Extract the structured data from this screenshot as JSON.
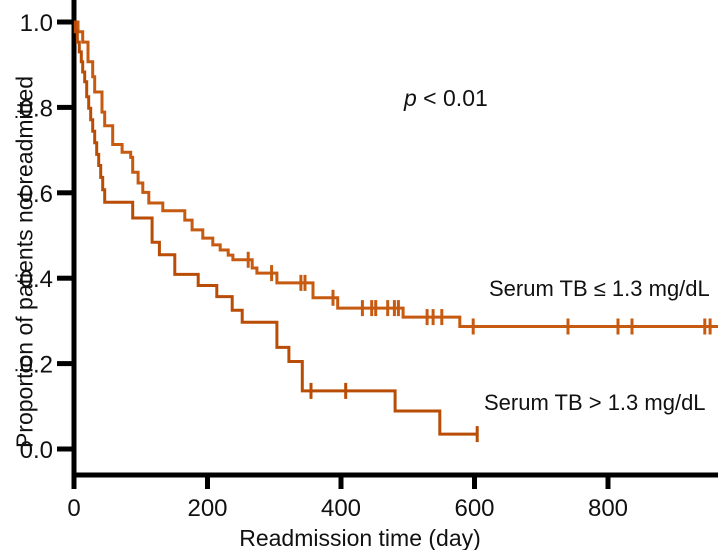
{
  "chart_data": {
    "type": "line",
    "subtype": "kaplan-meier-step",
    "title": "",
    "xlabel": "Readmission time (day)",
    "ylabel": "Proportion of patients not readmitted",
    "xlim": [
      0,
      965
    ],
    "ylim": [
      0.0,
      1.0
    ],
    "xticks": [
      0,
      200,
      400,
      600,
      800
    ],
    "yticks": [
      0.0,
      0.2,
      0.4,
      0.6,
      0.8,
      1.0
    ],
    "grid": false,
    "legend_position": "curve-end-labels",
    "axis_color": "#000000",
    "annotation": {
      "text": "p < 0.01",
      "italic_var": "p",
      "rest": " < 0.01"
    },
    "series": [
      {
        "name": "Serum TB ≤ 1.3 mg/dL",
        "color": "#c65a10",
        "points": [
          [
            0,
            1.0
          ],
          [
            6,
            0.977
          ],
          [
            13,
            0.953
          ],
          [
            21,
            0.907
          ],
          [
            28,
            0.872
          ],
          [
            31,
            0.836
          ],
          [
            42,
            0.789
          ],
          [
            46,
            0.757
          ],
          [
            58,
            0.713
          ],
          [
            72,
            0.695
          ],
          [
            85,
            0.683
          ],
          [
            88,
            0.648
          ],
          [
            96,
            0.623
          ],
          [
            103,
            0.601
          ],
          [
            112,
            0.576
          ],
          [
            133,
            0.558
          ],
          [
            166,
            0.536
          ],
          [
            177,
            0.513
          ],
          [
            193,
            0.494
          ],
          [
            208,
            0.478
          ],
          [
            219,
            0.466
          ],
          [
            231,
            0.454
          ],
          [
            238,
            0.443
          ],
          [
            267,
            0.424
          ],
          [
            274,
            0.412
          ],
          [
            304,
            0.389
          ],
          [
            358,
            0.354
          ],
          [
            395,
            0.33
          ],
          [
            493,
            0.309
          ],
          [
            578,
            0.287
          ]
        ],
        "end_day": 965,
        "censor_days": [
          261,
          296,
          340,
          346,
          388,
          432,
          446,
          452,
          470,
          480,
          486,
          529,
          538,
          551,
          598,
          740,
          815,
          836,
          945,
          953
        ]
      },
      {
        "name": "Serum TB > 1.3 mg/dL",
        "color": "#b94d06",
        "points": [
          [
            0,
            1.0
          ],
          [
            2,
            0.977
          ],
          [
            5,
            0.953
          ],
          [
            8,
            0.93
          ],
          [
            11,
            0.907
          ],
          [
            13,
            0.883
          ],
          [
            16,
            0.86
          ],
          [
            19,
            0.825
          ],
          [
            22,
            0.798
          ],
          [
            25,
            0.771
          ],
          [
            28,
            0.744
          ],
          [
            31,
            0.717
          ],
          [
            34,
            0.69
          ],
          [
            37,
            0.664
          ],
          [
            40,
            0.636
          ],
          [
            43,
            0.607
          ],
          [
            46,
            0.578
          ],
          [
            88,
            0.541
          ],
          [
            117,
            0.484
          ],
          [
            128,
            0.455
          ],
          [
            151,
            0.409
          ],
          [
            186,
            0.383
          ],
          [
            214,
            0.357
          ],
          [
            237,
            0.325
          ],
          [
            252,
            0.297
          ],
          [
            304,
            0.238
          ],
          [
            322,
            0.205
          ],
          [
            342,
            0.136
          ],
          [
            481,
            0.089
          ],
          [
            548,
            0.035
          ]
        ],
        "end_day": 605,
        "censor_days": [
          355,
          407,
          604
        ]
      }
    ]
  }
}
